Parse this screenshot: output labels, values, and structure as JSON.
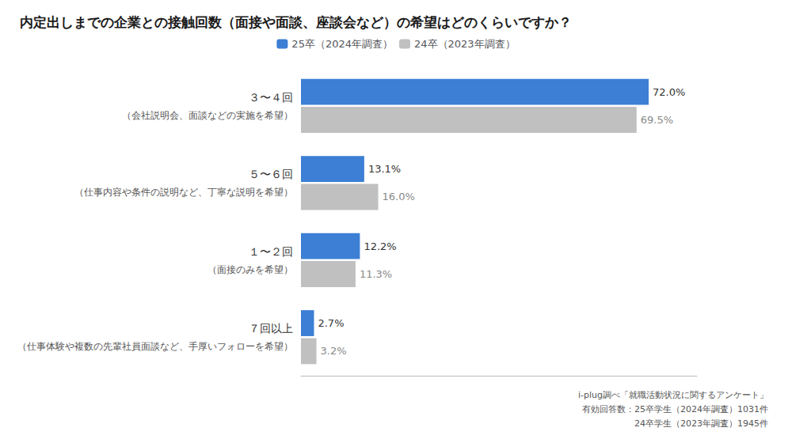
{
  "chart_data": {
    "type": "bar",
    "orientation": "horizontal",
    "title": "内定出しまでの企業との接触回数（面接や面談、座談会など）の希望はどのくらいですか？",
    "categories": [
      "３〜４回",
      "５〜６回",
      "１〜２回",
      "７回以上"
    ],
    "category_notes": [
      "（会社説明会、面談などの実施を希望）",
      "（仕事内容や条件の説明など、丁寧な説明を希望）",
      "（面接のみを希望）",
      "（仕事体験や複数の先輩社員面談など、手厚いフォローを希望）"
    ],
    "series": [
      {
        "name": "25卒（2024年調査）",
        "color": "#3c7fd4",
        "values": [
          72.0,
          13.1,
          12.2,
          2.7
        ],
        "value_labels": [
          "72.0%",
          "13.1%",
          "12.2%",
          "2.7%"
        ]
      },
      {
        "name": "24卒（2023年調査）",
        "color": "#c0c0c0",
        "values": [
          69.5,
          16.0,
          11.3,
          3.2
        ],
        "value_labels": [
          "69.5%",
          "16.0%",
          "11.3%",
          "3.2%"
        ]
      }
    ],
    "xlim": [
      0,
      82
    ],
    "grid": false,
    "legend": "top",
    "data_labels": true,
    "tick_labels": "y",
    "annotations": [
      "i-plug調べ「就職活動状況に関するアンケート」",
      "有効回答数：25卒学生（2024年調査）1031件",
      "　　　　　　24卒学生（2023年調査）1945件"
    ]
  }
}
